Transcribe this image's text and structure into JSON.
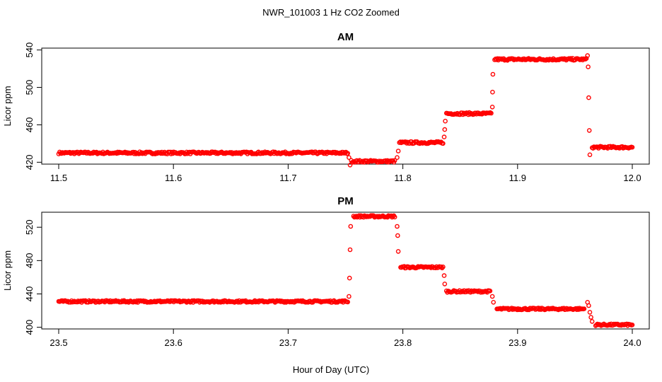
{
  "title": "NWR_101003  1 Hz CO2 Zoomed",
  "xlabel": "Hour of Day (UTC)",
  "colors": {
    "points": "#ff0000"
  },
  "chart_data": [
    {
      "type": "scatter",
      "title": "AM",
      "ylabel": "Licor ppm",
      "xlim": [
        11.5,
        12.0
      ],
      "ylim": [
        418,
        542
      ],
      "xticks": [
        "11.5",
        "11.6",
        "11.7",
        "11.8",
        "11.9",
        "12.0"
      ],
      "yticks": [
        "420",
        "460",
        "500",
        "540"
      ],
      "segments": [
        {
          "x_start": 11.5,
          "x_end": 11.752,
          "y": 430
        },
        {
          "x_start": 11.755,
          "x_end": 11.793,
          "y": 421
        },
        {
          "x_start": 11.797,
          "x_end": 11.835,
          "y": 441
        },
        {
          "x_start": 11.838,
          "x_end": 11.877,
          "y": 472
        },
        {
          "x_start": 11.88,
          "x_end": 11.96,
          "y": 530
        },
        {
          "x_start": 11.965,
          "x_end": 12.0,
          "y": 436
        }
      ],
      "transitions": [
        {
          "x": 11.753,
          "y": 425
        },
        {
          "x": 11.754,
          "y": 417
        },
        {
          "x": 11.795,
          "y": 425
        },
        {
          "x": 11.796,
          "y": 432
        },
        {
          "x": 11.836,
          "y": 447
        },
        {
          "x": 11.8365,
          "y": 455
        },
        {
          "x": 11.837,
          "y": 464
        },
        {
          "x": 11.878,
          "y": 479
        },
        {
          "x": 11.8782,
          "y": 495
        },
        {
          "x": 11.8785,
          "y": 514
        },
        {
          "x": 11.961,
          "y": 534
        },
        {
          "x": 11.9615,
          "y": 522
        },
        {
          "x": 11.962,
          "y": 489
        },
        {
          "x": 11.9625,
          "y": 454
        },
        {
          "x": 11.963,
          "y": 428
        }
      ]
    },
    {
      "type": "scatter",
      "title": "PM",
      "ylabel": "Licor ppm",
      "xlim": [
        23.5,
        24.0
      ],
      "ylim": [
        398,
        538
      ],
      "xticks": [
        "23.5",
        "23.6",
        "23.7",
        "23.8",
        "23.9",
        "24.0"
      ],
      "yticks": [
        "400",
        "440",
        "480",
        "520"
      ],
      "segments": [
        {
          "x_start": 23.5,
          "x_end": 23.752,
          "y": 431
        },
        {
          "x_start": 23.757,
          "x_end": 23.793,
          "y": 533
        },
        {
          "x_start": 23.798,
          "x_end": 23.835,
          "y": 472
        },
        {
          "x_start": 23.838,
          "x_end": 23.876,
          "y": 443
        },
        {
          "x_start": 23.882,
          "x_end": 23.958,
          "y": 422
        },
        {
          "x_start": 23.968,
          "x_end": 24.0,
          "y": 403
        }
      ],
      "transitions": [
        {
          "x": 23.753,
          "y": 437
        },
        {
          "x": 23.7535,
          "y": 459
        },
        {
          "x": 23.754,
          "y": 493
        },
        {
          "x": 23.7545,
          "y": 521
        },
        {
          "x": 23.795,
          "y": 521
        },
        {
          "x": 23.7955,
          "y": 510
        },
        {
          "x": 23.796,
          "y": 491
        },
        {
          "x": 23.836,
          "y": 462
        },
        {
          "x": 23.8365,
          "y": 452
        },
        {
          "x": 23.878,
          "y": 437
        },
        {
          "x": 23.879,
          "y": 430
        },
        {
          "x": 23.961,
          "y": 430
        },
        {
          "x": 23.962,
          "y": 426
        },
        {
          "x": 23.963,
          "y": 418
        },
        {
          "x": 23.964,
          "y": 412
        },
        {
          "x": 23.965,
          "y": 407
        }
      ]
    }
  ]
}
